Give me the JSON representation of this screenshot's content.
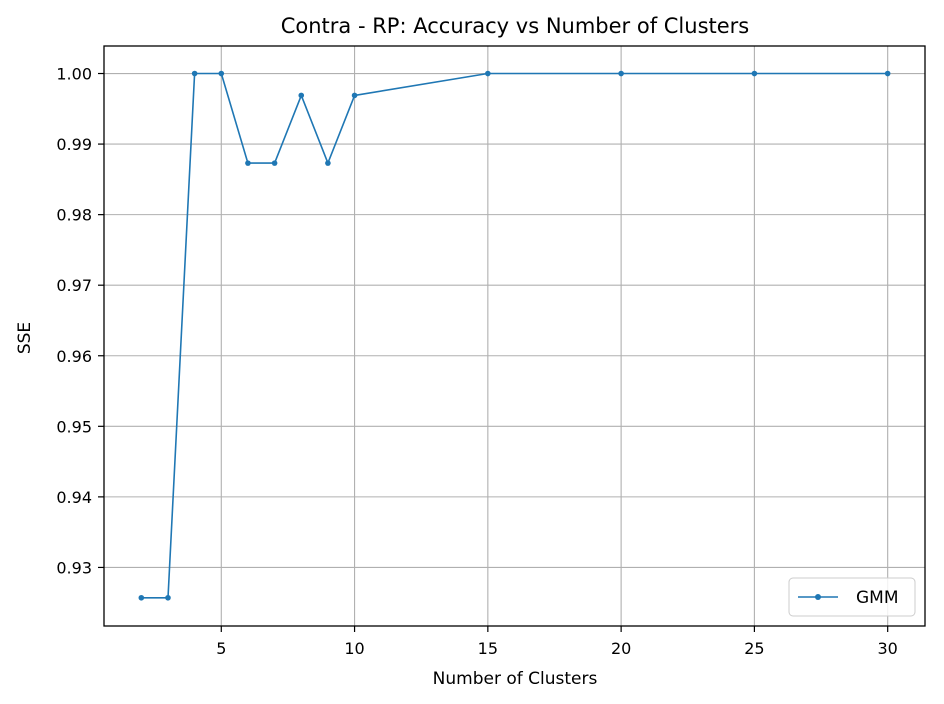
{
  "chart_data": {
    "type": "line",
    "title": "Contra - RP: Accuracy vs Number of Clusters",
    "xlabel": "Number of Clusters",
    "ylabel": "SSE",
    "xlim": [
      0.6,
      31.4
    ],
    "ylim": [
      0.9217,
      1.0039
    ],
    "xticks": [
      5,
      10,
      15,
      20,
      25,
      30
    ],
    "yticks": [
      0.93,
      0.94,
      0.95,
      0.96,
      0.97,
      0.98,
      0.99,
      1.0
    ],
    "ytick_labels": [
      "0.93",
      "0.94",
      "0.95",
      "0.96",
      "0.97",
      "0.98",
      "0.99",
      "1.00"
    ],
    "grid": true,
    "legend_position": "lower-right",
    "series": [
      {
        "name": "GMM",
        "color": "#1f77b4",
        "x": [
          2,
          3,
          4,
          5,
          6,
          7,
          8,
          9,
          10,
          15,
          20,
          25,
          30
        ],
        "y": [
          0.9257,
          0.9257,
          1.0,
          1.0,
          0.9873,
          0.9873,
          0.9969,
          0.9873,
          0.9969,
          1.0,
          1.0,
          1.0,
          1.0
        ]
      }
    ]
  }
}
